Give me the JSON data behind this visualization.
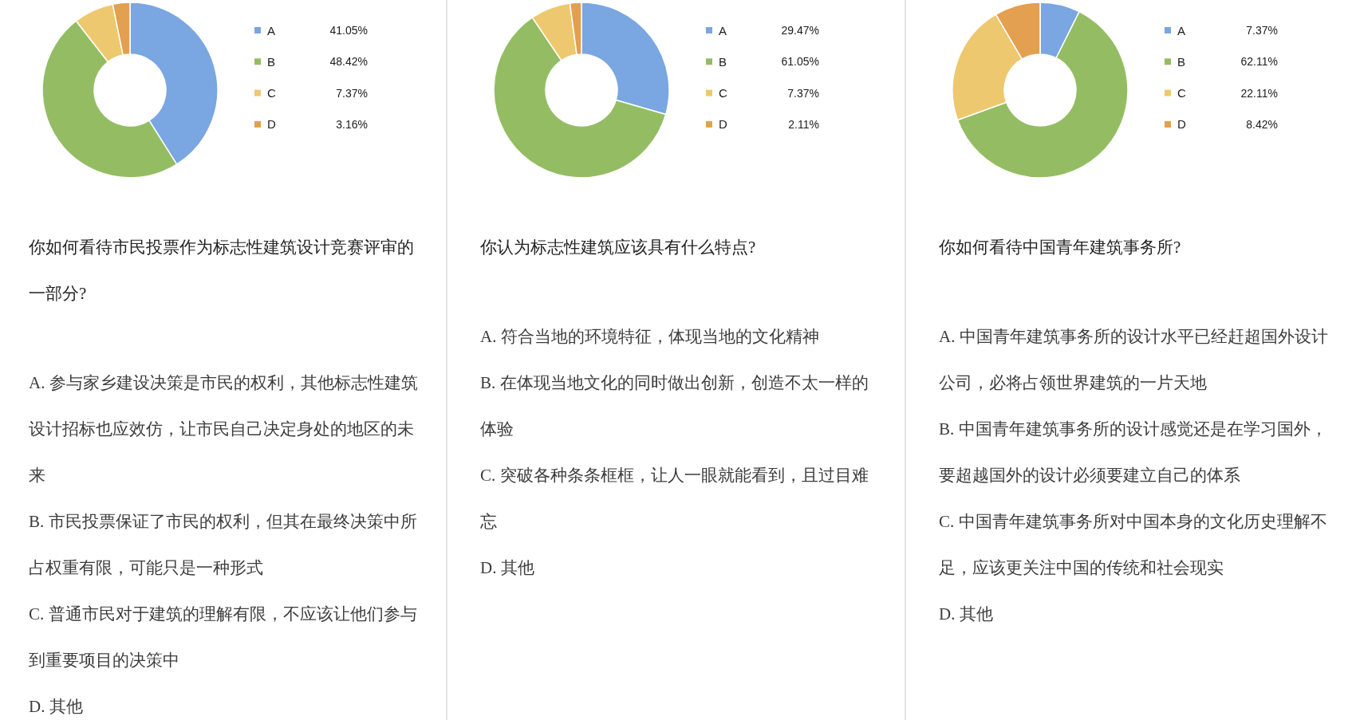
{
  "chart_data": [
    {
      "type": "donut",
      "title": "你如何看待市民投票作为标志性建筑设计竞赛评审的一部分?",
      "categories": [
        "A",
        "B",
        "C",
        "D"
      ],
      "values": [
        41.05,
        48.42,
        7.37,
        3.16
      ],
      "value_labels": [
        "41.05%",
        "48.42%",
        "7.37%",
        "3.16%"
      ],
      "colors": [
        "#7aa6e1",
        "#94bd63",
        "#eec86e",
        "#e3a050"
      ],
      "legend": "right",
      "annotations": [
        "A. 参与家乡建设决策是市民的权利，其他标志性建筑设计招标也应效仿，让市民自己决定身处的地区的未来",
        "B. 市民投票保证了市民的权利，但其在最终决策中所占权重有限，可能只是一种形式",
        "C. 普通市民对于建筑的理解有限，不应该让他们参与到重要项目的决策中",
        "D. 其他"
      ]
    },
    {
      "type": "donut",
      "title": "你认为标志性建筑应该具有什么特点?",
      "categories": [
        "A",
        "B",
        "C",
        "D"
      ],
      "values": [
        29.47,
        61.05,
        7.37,
        2.11
      ],
      "value_labels": [
        "29.47%",
        "61.05%",
        "7.37%",
        "2.11%"
      ],
      "colors": [
        "#7aa6e1",
        "#94bd63",
        "#eec86e",
        "#e3a050"
      ],
      "legend": "right",
      "annotations": [
        "A. 符合当地的环境特征，体现当地的文化精神",
        "B. 在体现当地文化的同时做出创新，创造不太一样的体验",
        "C. 突破各种条条框框，让人一眼就能看到，且过目难忘",
        "D. 其他"
      ]
    },
    {
      "type": "donut",
      "title": "你如何看待中国青年建筑事务所?",
      "categories": [
        "A",
        "B",
        "C",
        "D"
      ],
      "values": [
        7.37,
        62.11,
        22.11,
        8.42
      ],
      "value_labels": [
        "7.37%",
        "62.11%",
        "22.11%",
        "8.42%"
      ],
      "colors": [
        "#7aa6e1",
        "#94bd63",
        "#eec86e",
        "#e3a050"
      ],
      "legend": "right",
      "annotations": [
        "A. 中国青年建筑事务所的设计水平已经赶超国外设计公司，必将占领世界建筑的一片天地",
        "B. 中国青年建筑事务所的设计感觉还是在学习国外，要超越国外的设计必须要建立自己的体系",
        "C. 中国青年建筑事务所对中国本身的文化历史理解不足，应该更关注中国的传统和社会现实",
        "D. 其他"
      ]
    }
  ]
}
